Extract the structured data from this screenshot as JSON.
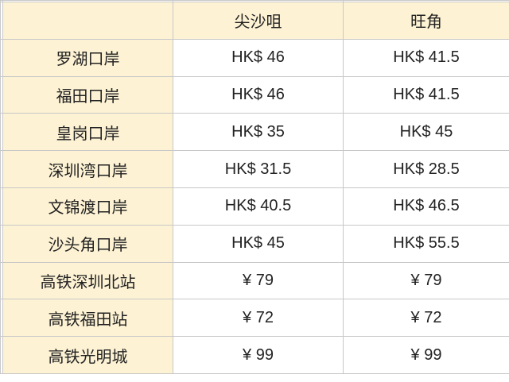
{
  "columns": [
    "",
    "尖沙咀",
    "旺角"
  ],
  "rows": [
    {
      "name": "罗湖口岸",
      "tst": "HK$ 46",
      "mk": "HK$ 41.5"
    },
    {
      "name": "福田口岸",
      "tst": "HK$ 46",
      "mk": "HK$ 41.5"
    },
    {
      "name": "皇岗口岸",
      "tst": "HK$ 35",
      "mk": "HK$ 45"
    },
    {
      "name": "深圳湾口岸",
      "tst": "HK$ 31.5",
      "mk": "HK$ 28.5"
    },
    {
      "name": "文锦渡口岸",
      "tst": "HK$ 40.5",
      "mk": "HK$ 46.5"
    },
    {
      "name": "沙头角口岸",
      "tst": "HK$ 45",
      "mk": "HK$ 55.5"
    },
    {
      "name": "高铁深圳北站",
      "tst": "¥ 79",
      "mk": "¥ 79"
    },
    {
      "name": "高铁福田站",
      "tst": "¥ 72",
      "mk": "¥ 72"
    },
    {
      "name": "高铁光明城",
      "tst": "¥ 99",
      "mk": "¥ 99"
    }
  ],
  "colors": {
    "header_bg": "#fdf2d4",
    "grid": "#c8c8c8"
  }
}
